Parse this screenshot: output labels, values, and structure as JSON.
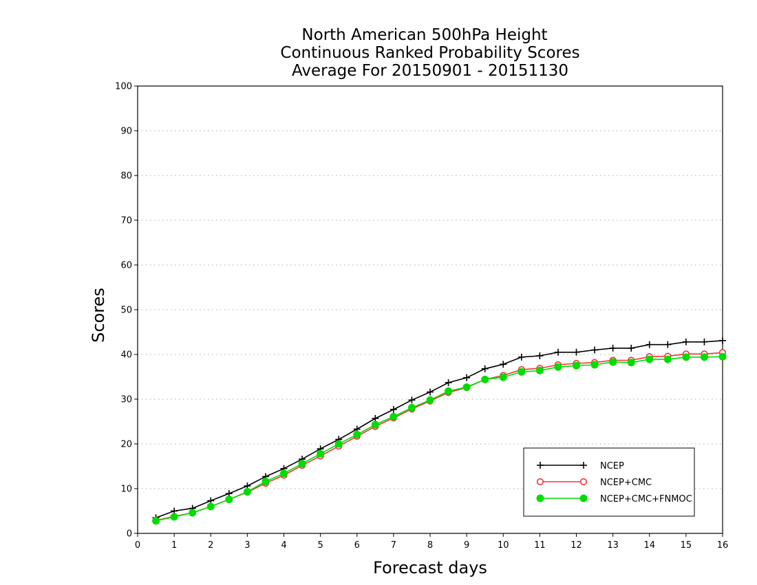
{
  "chart_data": {
    "type": "line",
    "title": "North American 500hPa Height",
    "subtitle": "Continuous Ranked Probability Scores",
    "subtitle2": "Average For 20150901 - 20151130",
    "xlabel": "Forecast days",
    "ylabel": "Scores",
    "xlim": [
      0,
      16
    ],
    "ylim": [
      0,
      100
    ],
    "xticks": [
      "0",
      "1",
      "2",
      "3",
      "4",
      "5",
      "6",
      "7",
      "8",
      "9",
      "10",
      "11",
      "12",
      "13",
      "14",
      "15",
      "16"
    ],
    "yticks": [
      "0",
      "10",
      "20",
      "30",
      "40",
      "50",
      "60",
      "70",
      "80",
      "90",
      "100"
    ],
    "grid": "horizontal dotted",
    "legend_position": "bottom-right",
    "x": [
      0.5,
      1,
      1.5,
      2,
      2.5,
      3,
      3.5,
      4,
      4.5,
      5,
      5.5,
      6,
      6.5,
      7,
      7.5,
      8,
      8.5,
      9,
      9.5,
      10,
      10.5,
      11,
      11.5,
      12,
      12.5,
      13,
      13.5,
      14,
      14.5,
      15,
      15.5,
      16
    ],
    "series": [
      {
        "name": "NCEP",
        "color": "#000000",
        "marker": "plus",
        "values": [
          3.5,
          5.0,
          5.6,
          7.3,
          8.9,
          10.6,
          12.7,
          14.5,
          16.6,
          18.9,
          21.0,
          23.3,
          25.7,
          27.7,
          29.8,
          31.6,
          33.7,
          34.8,
          36.8,
          37.8,
          39.4,
          39.7,
          40.5,
          40.5,
          41.0,
          41.4,
          41.4,
          42.2,
          42.2,
          42.8,
          42.8,
          43.1
        ]
      },
      {
        "name": "NCEP+CMC",
        "color": "#ee3333",
        "marker": "open-circle",
        "values": [
          2.9,
          3.8,
          4.6,
          6.0,
          7.6,
          9.2,
          11.2,
          13.0,
          15.2,
          17.3,
          19.5,
          21.7,
          23.9,
          25.8,
          27.8,
          29.6,
          31.5,
          32.6,
          34.4,
          35.3,
          36.6,
          36.9,
          37.7,
          38.0,
          38.2,
          38.7,
          38.7,
          39.5,
          39.6,
          40.1,
          40.1,
          40.4
        ]
      },
      {
        "name": "NCEP+CMC+FNMOC",
        "color": "#00dd00",
        "marker": "filled-circle",
        "values": [
          2.8,
          3.7,
          4.6,
          6.0,
          7.6,
          9.3,
          11.6,
          13.4,
          15.6,
          17.8,
          20.0,
          22.1,
          24.3,
          26.1,
          28.1,
          29.8,
          31.8,
          32.7,
          34.4,
          34.9,
          36.1,
          36.4,
          37.2,
          37.5,
          37.7,
          38.3,
          38.2,
          38.9,
          38.9,
          39.4,
          39.4,
          39.5
        ]
      }
    ]
  }
}
